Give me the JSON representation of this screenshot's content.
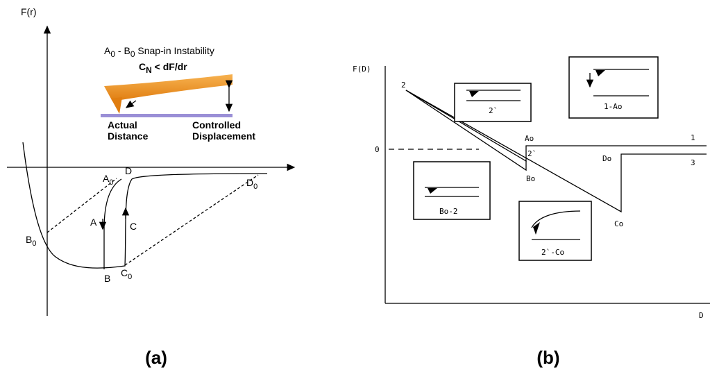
{
  "panel_a": {
    "axis_y": "F(r)",
    "title": [
      "A",
      "0",
      " - B",
      "0",
      " Snap-in Instability"
    ],
    "condition": [
      "C",
      "N",
      " < dF/dr"
    ],
    "actual_distance": [
      "Actual",
      "Distance"
    ],
    "controlled_displacement": [
      "Controlled",
      "Displacement"
    ],
    "points": {
      "A0": [
        "A",
        "0"
      ],
      "D": [
        "D"
      ],
      "D0": [
        "D",
        "0"
      ],
      "B0": [
        "B",
        "0"
      ],
      "A": [
        "A"
      ],
      "C": [
        "C"
      ],
      "B": [
        "B"
      ],
      "C0": [
        "C",
        "0"
      ]
    },
    "caption": "(a)"
  },
  "panel_b": {
    "axis_y": "F(D)",
    "axis_x": "D",
    "zero": "0",
    "points": {
      "two": "2",
      "Ao": "Ao",
      "two_prime": "2`",
      "one": "1",
      "Do": "Do",
      "three": "3",
      "Bo": "Bo",
      "Co": "Co"
    },
    "insets": [
      "2`",
      "1-Ao",
      "Bo-2",
      "2`-Co"
    ],
    "caption": "(b)"
  }
}
